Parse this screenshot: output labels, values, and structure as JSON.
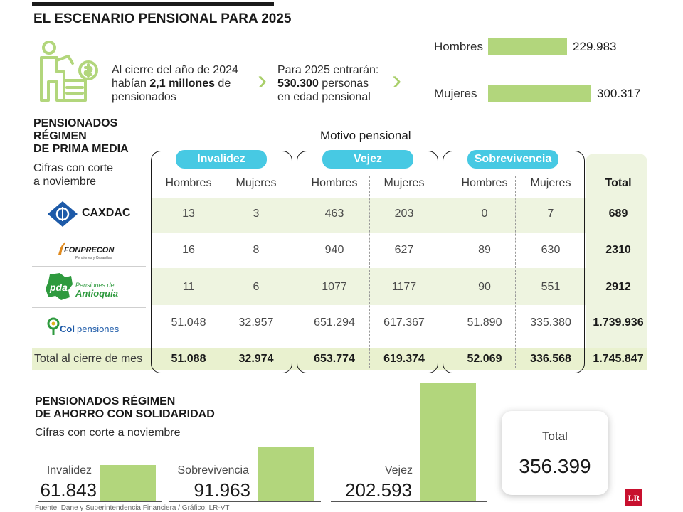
{
  "header": {
    "title": "EL ESCENARIO PENSIONAL PARA 2025"
  },
  "intro": {
    "p1_a": "Al cierre del año de 2024",
    "p1_b": "habían ",
    "p1_bold": "2,1 millones",
    "p1_c": " de",
    "p1_d": "pensionados",
    "p2_a": "Para 2025 entrarán:",
    "p2_bold": "530.300",
    "p2_b": " personas",
    "p2_c": "en edad pensional"
  },
  "gender_chart": {
    "type": "bar",
    "categories": [
      "Hombres",
      "Mujeres"
    ],
    "values": [
      229983,
      300317
    ],
    "value_labels": [
      "229.983",
      "300.317"
    ]
  },
  "rpm": {
    "title_lines": [
      "PENSIONADOS",
      "RÉGIMEN",
      "DE PRIMA MEDIA"
    ],
    "subtitle_lines": [
      "Cifras con corte",
      "a noviembre"
    ],
    "motivo_label": "Motivo pensional",
    "groups": [
      "Invalidez",
      "Vejez",
      "Sobrevivencia"
    ],
    "col_headers": [
      "Hombres",
      "Mujeres",
      "Hombres",
      "Mujeres",
      "Hombres",
      "Mujeres"
    ],
    "total_header": "Total",
    "rows": [
      {
        "entity": "CAXDAC",
        "values": [
          "13",
          "3",
          "463",
          "203",
          "0",
          "7"
        ],
        "total": "689"
      },
      {
        "entity": "FONPRECON",
        "entity_sub": "Pensiones y Cesantías",
        "values": [
          "16",
          "8",
          "940",
          "627",
          "89",
          "630"
        ],
        "total": "2310"
      },
      {
        "entity": "Pensiones de Antioquia",
        "entity_short": "pda",
        "entity_line1": "Pensiones de",
        "entity_line2": "Antioquia",
        "values": [
          "11",
          "6",
          "1077",
          "1177",
          "90",
          "551"
        ],
        "total": "2912"
      },
      {
        "entity": "Colpensiones",
        "entity_a": "Col",
        "entity_b": "pensiones",
        "values": [
          "51.048",
          "32.957",
          "651.294",
          "617.367",
          "51.890",
          "335.380"
        ],
        "total": "1.739.936"
      }
    ],
    "total_row": {
      "label": "Total al cierre de mes",
      "values": [
        "51.088",
        "32.974",
        "653.774",
        "619.374",
        "52.069",
        "336.568"
      ],
      "total": "1.745.847"
    }
  },
  "rais": {
    "title_lines": [
      "PENSIONADOS RÉGIMEN",
      "DE AHORRO CON SOLIDARIDAD"
    ],
    "subtitle": "Cifras con corte a noviembre",
    "chart": {
      "type": "bar",
      "categories": [
        "Invalidez",
        "Sobrevivencia",
        "Vejez"
      ],
      "values": [
        61843,
        91963,
        202593
      ],
      "value_labels": [
        "61.843",
        "91.963",
        "202.593"
      ]
    },
    "total_label": "Total",
    "total_value": "356.399"
  },
  "footer": {
    "source": "Fuente: Dane y Superintendencia Financiera / Gráfico: LR-VT",
    "logo": "LR"
  },
  "colors": {
    "green": "#b2d67c",
    "cyan": "#47c9e3",
    "light": "#eef4e0",
    "red": "#c8102e"
  }
}
